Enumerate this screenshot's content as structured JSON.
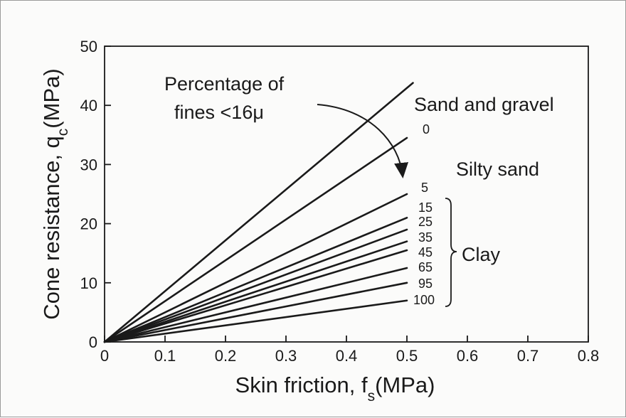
{
  "chart_data": {
    "type": "line",
    "xlabel": {
      "main": "Skin friction, f",
      "sub": "s",
      "unit": "(MPa)"
    },
    "ylabel": {
      "main": "Cone resistance, q",
      "sub": "c",
      "unit": "(MPa)"
    },
    "xlim": [
      0,
      0.8
    ],
    "ylim": [
      0,
      50
    ],
    "x_ticks": [
      "0",
      "0.1",
      "0.2",
      "0.3",
      "0.4",
      "0.5",
      "0.6",
      "0.7",
      "0.8"
    ],
    "y_ticks": [
      "0",
      "10",
      "20",
      "30",
      "40",
      "50"
    ],
    "grid": false,
    "series": [
      {
        "x": [
          0,
          0.51
        ],
        "y": [
          0,
          43.8
        ]
      },
      {
        "x": [
          0,
          0.5
        ],
        "y": [
          0,
          34.5
        ]
      },
      {
        "x": [
          0,
          0.5
        ],
        "y": [
          0,
          25.0
        ]
      },
      {
        "x": [
          0,
          0.5
        ],
        "y": [
          0,
          21.0
        ]
      },
      {
        "x": [
          0,
          0.5
        ],
        "y": [
          0,
          19.0
        ]
      },
      {
        "x": [
          0,
          0.5
        ],
        "y": [
          0,
          17.0
        ]
      },
      {
        "x": [
          0,
          0.5
        ],
        "y": [
          0,
          15.5
        ]
      },
      {
        "x": [
          0,
          0.5
        ],
        "y": [
          0,
          12.5
        ]
      },
      {
        "x": [
          0,
          0.5
        ],
        "y": [
          0,
          10.0
        ]
      },
      {
        "x": [
          0,
          0.5
        ],
        "y": [
          0,
          7.0
        ]
      }
    ],
    "line_labels": [
      "0",
      "5",
      "15",
      "25",
      "35",
      "45",
      "65",
      "95",
      "100"
    ],
    "zone_labels": [
      "Sand and gravel",
      "Silty sand",
      "Clay"
    ],
    "annotation": {
      "line1": "Percentage of",
      "line2": "fines <16μ"
    }
  }
}
